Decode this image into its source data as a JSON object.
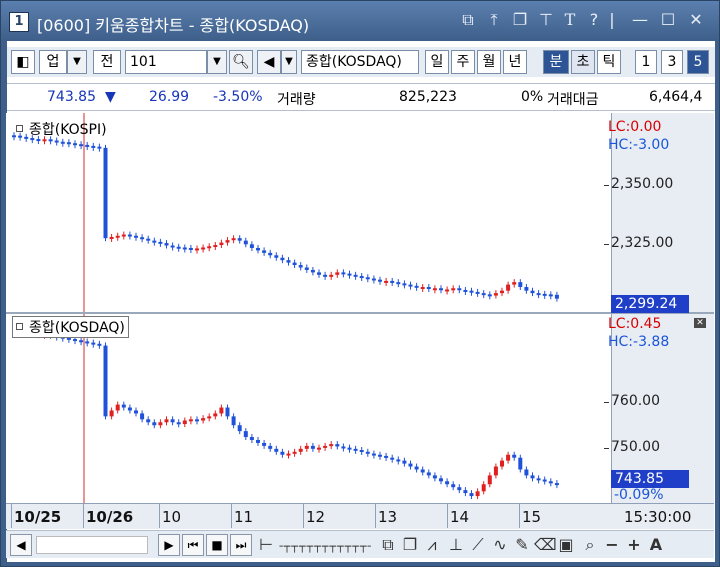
{
  "window": {
    "number": "1",
    "title": "[0600] 키움종합차트 - 종합(KOSDAQ)",
    "controls": [
      "restore-alt",
      "pin",
      "tile",
      "pushpin",
      "T",
      "?",
      "|",
      "minimize",
      "maximize",
      "close"
    ]
  },
  "toolbar": {
    "market": "업",
    "scope": "전",
    "code": "101",
    "name": "종합(KOSDAQ)",
    "periods": [
      "일",
      "주",
      "월",
      "년",
      "분",
      "초",
      "틱"
    ],
    "active_period": "분",
    "intervals": [
      "1",
      "3",
      "5"
    ],
    "active_interval": "5"
  },
  "info": {
    "price": "743.85",
    "arrow": "▼",
    "change": "26.99",
    "change_pct": "-3.50%",
    "volume_label": "거래량",
    "volume": "825,223",
    "volume_pct": "0%",
    "amount_label": "거래대금",
    "amount": "6,464,4"
  },
  "panes": {
    "kospi": {
      "legend": "종합(KOSPI)",
      "lc": "LC:0.00",
      "hc": "HC:-3.00",
      "ticks": [
        "2,350.00",
        "2,325.00"
      ],
      "last": "2,299.24"
    },
    "kosdaq": {
      "legend": "종합(KOSDAQ)",
      "lc": "LC:0.45",
      "hc": "HC:-3.88",
      "ticks": [
        "760.00",
        "750.00"
      ],
      "last": "743.85",
      "pct": "-0.09%"
    }
  },
  "xaxis": {
    "labels": [
      "10/25",
      "10/26",
      "10",
      "11",
      "12",
      "13",
      "14",
      "15"
    ],
    "time": "15:30:00"
  },
  "colors": {
    "up": "#e02020",
    "down": "#1f52d8",
    "divider": "#d62a2a"
  },
  "chart_data": [
    {
      "type": "candlestick",
      "series": "KOSPI",
      "ylim": [
        2295,
        2372
      ],
      "ticks": [
        2325,
        2350
      ],
      "last": 2299.24,
      "closes": [
        2366.0,
        2365.5,
        2365.0,
        2364.6,
        2364.2,
        2364.5,
        2364.0,
        2363.5,
        2363.3,
        2362.9,
        2362.5,
        2362.2,
        2361.8,
        2361.5,
        2361.0,
        2324.0,
        2324.5,
        2325.0,
        2325.5,
        2325.0,
        2324.4,
        2323.8,
        2323.0,
        2322.5,
        2322.0,
        2321.0,
        2320.5,
        2320.2,
        2320.0,
        2319.6,
        2319.8,
        2320.2,
        2320.7,
        2321.2,
        2322.2,
        2323.2,
        2324.0,
        2323.0,
        2321.5,
        2320.0,
        2319.0,
        2318.0,
        2317.0,
        2316.0,
        2315.0,
        2314.0,
        2313.0,
        2312.0,
        2311.0,
        2310.0,
        2309.0,
        2308.5,
        2309.0,
        2310.0,
        2309.5,
        2309.0,
        2308.5,
        2308.0,
        2307.5,
        2307.0,
        2306.5,
        2306.5,
        2306.0,
        2305.5,
        2305.0,
        2304.5,
        2304.0,
        2304.0,
        2303.5,
        2303.5,
        2303.0,
        2303.0,
        2303.5,
        2302.8,
        2302.5,
        2302.0,
        2301.5,
        2301.0,
        2300.5,
        2301.5,
        2302.5,
        2305.0,
        2306.0,
        2304.0,
        2302.5,
        2301.5,
        2301.2,
        2301.0,
        2300.8,
        2299.24
      ]
    },
    {
      "type": "candlestick",
      "series": "KOSDAQ",
      "ylim": [
        741.5,
        772
      ],
      "ticks": [
        750,
        760
      ],
      "last": 743.85,
      "closes": [
        770.2,
        770.0,
        769.8,
        769.6,
        769.4,
        769.5,
        769.2,
        769.0,
        768.8,
        768.6,
        768.4,
        768.2,
        768.0,
        767.8,
        767.5,
        755.5,
        756.5,
        757.5,
        757.0,
        756.5,
        756.0,
        755.0,
        754.5,
        754.0,
        754.5,
        755.0,
        754.5,
        754.2,
        754.8,
        755.0,
        754.8,
        755.2,
        755.5,
        756.0,
        757.0,
        755.5,
        754.0,
        753.0,
        752.0,
        751.5,
        751.0,
        750.5,
        750.0,
        749.5,
        749.0,
        749.2,
        749.5,
        750.0,
        750.5,
        750.0,
        750.2,
        750.5,
        750.8,
        750.4,
        750.2,
        750.0,
        749.8,
        749.5,
        749.2,
        749.0,
        748.8,
        748.5,
        748.2,
        748.0,
        747.5,
        747.0,
        746.5,
        746.0,
        745.5,
        745.0,
        744.5,
        744.0,
        743.5,
        743.0,
        742.5,
        742.0,
        742.8,
        744.0,
        745.5,
        747.0,
        748.0,
        749.0,
        748.5,
        746.5,
        745.5,
        745.0,
        744.8,
        744.5,
        744.2,
        743.85
      ]
    }
  ]
}
